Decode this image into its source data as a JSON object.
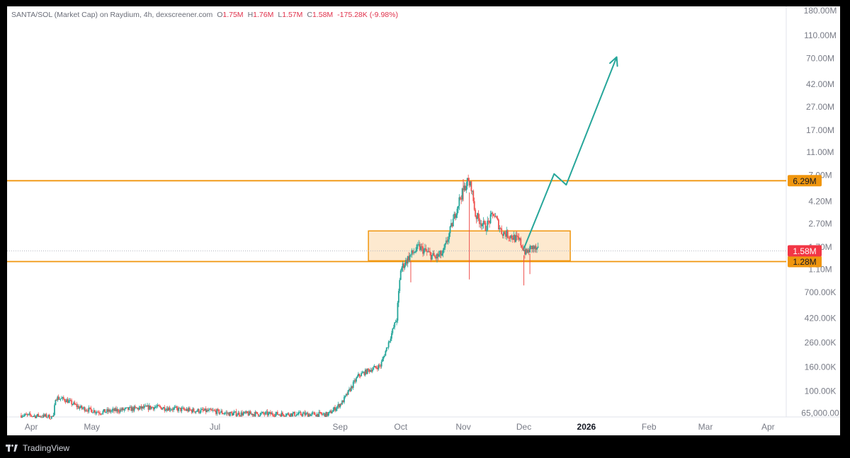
{
  "header": {
    "symbol": "SANTA/SOL (Market Cap) on Raydium, 4h, dexscreener.com",
    "o_label": "O",
    "o_value": "1.75M",
    "h_label": "H",
    "h_value": "1.76M",
    "l_label": "L",
    "l_value": "1.57M",
    "c_label": "C",
    "c_value": "1.58M",
    "change": "-175.28K (-9.98%)"
  },
  "footer": {
    "brand": "TradingView"
  },
  "colors": {
    "up": "#26a69a",
    "down": "#ef5350",
    "level": "#f0960e",
    "zone_fill": "#fde9cf",
    "arrow": "#26a69a",
    "price_tag": "#f23645",
    "axis_text": "#787b86"
  },
  "chart_data": {
    "type": "candlestick",
    "y_scale": "log",
    "y_tick_labels": [
      "180.00M",
      "110.00M",
      "70.00M",
      "42.00M",
      "27.00M",
      "17.00M",
      "11.00M",
      "7.00M",
      "4.20M",
      "2.70M",
      "1.70M",
      "1.10M",
      "700.00K",
      "420.00K",
      "260.00K",
      "160.00K",
      "100.00K",
      "65,000.00"
    ],
    "y_tick_values": [
      180000000,
      110000000,
      70000000,
      42000000,
      27000000,
      17000000,
      11000000,
      7000000,
      4200000,
      2700000,
      1700000,
      1100000,
      700000,
      420000,
      260000,
      160000,
      100000,
      65000
    ],
    "y_range": [
      60000,
      195000000
    ],
    "x_range": [
      "2025-03-20",
      "2026-04-10"
    ],
    "x_tick_labels": [
      "Apr",
      "May",
      "Jul",
      "Sep",
      "Oct",
      "Nov",
      "Dec",
      "2026",
      "Feb",
      "Mar",
      "Apr"
    ],
    "x_tick_dates": [
      "2025-04-01",
      "2025-05-01",
      "2025-07-01",
      "2025-09-01",
      "2025-10-01",
      "2025-11-01",
      "2025-12-01",
      "2026-01-01",
      "2026-02-01",
      "2026-03-01",
      "2026-04-01"
    ],
    "bold_tick": "2026",
    "levels": [
      {
        "value": 6290000,
        "label": "6.29M"
      },
      {
        "value": 1280000,
        "label": "1.28M"
      }
    ],
    "current_price": {
      "value": 1580000,
      "label": "1.58M"
    },
    "zone": {
      "x0": "2025-09-15",
      "x1": "2025-12-24",
      "y_low": 1300000,
      "y_high": 2340000
    },
    "projection": [
      {
        "date": "2025-12-01",
        "value": 1650000
      },
      {
        "date": "2025-12-16",
        "value": 7200000
      },
      {
        "date": "2025-12-22",
        "value": 5800000
      },
      {
        "date": "2026-01-16",
        "value": 72000000
      }
    ],
    "price_path": [
      {
        "date": "2025-03-27",
        "value": 62000
      },
      {
        "date": "2025-04-12",
        "value": 60000
      },
      {
        "date": "2025-04-13",
        "value": 88000
      },
      {
        "date": "2025-04-18",
        "value": 84000
      },
      {
        "date": "2025-04-25",
        "value": 72000
      },
      {
        "date": "2025-05-05",
        "value": 66000
      },
      {
        "date": "2025-05-20",
        "value": 70000
      },
      {
        "date": "2025-06-01",
        "value": 73000
      },
      {
        "date": "2025-06-20",
        "value": 68000
      },
      {
        "date": "2025-07-01",
        "value": 67000
      },
      {
        "date": "2025-07-08",
        "value": 64000
      },
      {
        "date": "2025-08-26",
        "value": 63000
      },
      {
        "date": "2025-09-02",
        "value": 80000
      },
      {
        "date": "2025-09-10",
        "value": 135000
      },
      {
        "date": "2025-09-15",
        "value": 150000
      },
      {
        "date": "2025-09-21",
        "value": 165000
      },
      {
        "date": "2025-09-25",
        "value": 260000
      },
      {
        "date": "2025-09-29",
        "value": 420000
      },
      {
        "date": "2025-10-01",
        "value": 1100000
      },
      {
        "date": "2025-10-05",
        "value": 1400000
      },
      {
        "date": "2025-10-10",
        "value": 1700000
      },
      {
        "date": "2025-10-18",
        "value": 1380000
      },
      {
        "date": "2025-10-22",
        "value": 1500000
      },
      {
        "date": "2025-10-25",
        "value": 2200000
      },
      {
        "date": "2025-10-30",
        "value": 4300000
      },
      {
        "date": "2025-11-03",
        "value": 6200000
      },
      {
        "date": "2025-11-05",
        "value": 5600000
      },
      {
        "date": "2025-11-07",
        "value": 3200000
      },
      {
        "date": "2025-11-12",
        "value": 2500000
      },
      {
        "date": "2025-11-16",
        "value": 3300000
      },
      {
        "date": "2025-11-20",
        "value": 2300000
      },
      {
        "date": "2025-11-25",
        "value": 2100000
      },
      {
        "date": "2025-11-29",
        "value": 1900000
      },
      {
        "date": "2025-12-02",
        "value": 1500000
      },
      {
        "date": "2025-12-05",
        "value": 1700000
      },
      {
        "date": "2025-12-08",
        "value": 1580000
      }
    ]
  }
}
